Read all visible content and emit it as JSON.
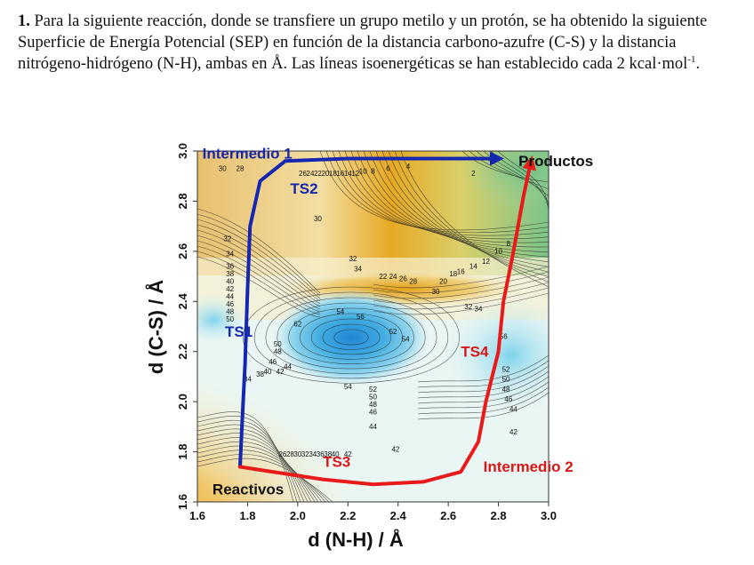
{
  "question": {
    "number": "1.",
    "text": "Para la siguiente reacción, donde se transfiere un grupo metilo y un protón, se ha obtenido la siguiente Superficie de Energía Potencial (SEP) en función de la distancia carbono-azufre (C-S) y la distancia nitrógeno-hidrógeno (N-H), ambas en Å. Las líneas isoenergéticas se han establecido cada 2 kcal·mol",
    "superscript": "-1",
    "end": "."
  },
  "chart_data": {
    "type": "heatmap",
    "xlabel": "d (N-H) / Å",
    "ylabel": "d (C-S) / Å",
    "xlim": [
      1.6,
      3.0
    ],
    "ylim": [
      1.6,
      3.0
    ],
    "xticks": [
      "1.6",
      "1.8",
      "2.0",
      "2.2",
      "2.4",
      "2.6",
      "2.8",
      "3.0"
    ],
    "yticks": [
      "1.6",
      "1.8",
      "2.0",
      "2.2",
      "2.4",
      "2.6",
      "2.8",
      "3.0"
    ],
    "contour_interval_kcal_mol": 2,
    "colors": {
      "high": "#e3a41a",
      "mid": "#f7f2c8",
      "low": "#35a4d6",
      "products": "#7cc48a"
    },
    "annotations": [
      {
        "text": "Intermedio 1",
        "x": 1.62,
        "y": 2.97,
        "color": "#1526b0"
      },
      {
        "text": "TS2",
        "x": 1.97,
        "y": 2.83,
        "color": "#1526b0"
      },
      {
        "text": "TS1",
        "x": 1.71,
        "y": 2.26,
        "color": "#1526b0"
      },
      {
        "text": "Productos",
        "x": 2.88,
        "y": 2.94,
        "color": "#111111"
      },
      {
        "text": "TS4",
        "x": 2.65,
        "y": 2.18,
        "color": "#d81818"
      },
      {
        "text": "TS3",
        "x": 2.1,
        "y": 1.74,
        "color": "#d81818"
      },
      {
        "text": "Intermedio 2",
        "x": 2.74,
        "y": 1.72,
        "color": "#d81818"
      },
      {
        "text": "Reactivos",
        "x": 1.66,
        "y": 1.63,
        "color": "#111111"
      }
    ],
    "paths": [
      {
        "color": "#1526b0",
        "points": [
          [
            1.77,
            1.74
          ],
          [
            1.78,
            1.95
          ],
          [
            1.79,
            2.15
          ],
          [
            1.8,
            2.45
          ],
          [
            1.81,
            2.7
          ],
          [
            1.85,
            2.88
          ],
          [
            1.95,
            2.96
          ],
          [
            2.2,
            2.97
          ],
          [
            2.5,
            2.97
          ],
          [
            2.8,
            2.97
          ]
        ]
      },
      {
        "color": "#e81a1a",
        "points": [
          [
            1.77,
            1.74
          ],
          [
            1.9,
            1.72
          ],
          [
            2.1,
            1.69
          ],
          [
            2.3,
            1.67
          ],
          [
            2.5,
            1.68
          ],
          [
            2.65,
            1.72
          ],
          [
            2.72,
            1.84
          ],
          [
            2.75,
            2.0
          ],
          [
            2.8,
            2.2
          ],
          [
            2.82,
            2.4
          ],
          [
            2.86,
            2.6
          ],
          [
            2.9,
            2.82
          ],
          [
            2.93,
            2.96
          ]
        ]
      }
    ],
    "contour_labels": [
      {
        "t": "30",
        "x": 1.7,
        "y": 2.92
      },
      {
        "t": "28",
        "x": 1.77,
        "y": 2.92
      },
      {
        "t": "26",
        "x": 2.02,
        "y": 2.9
      },
      {
        "t": "24",
        "x": 2.05,
        "y": 2.9
      },
      {
        "t": "22",
        "x": 2.08,
        "y": 2.9
      },
      {
        "t": "20",
        "x": 2.11,
        "y": 2.9
      },
      {
        "t": "18",
        "x": 2.14,
        "y": 2.9
      },
      {
        "t": "16",
        "x": 2.17,
        "y": 2.9
      },
      {
        "t": "14",
        "x": 2.2,
        "y": 2.9
      },
      {
        "t": "12",
        "x": 2.23,
        "y": 2.9
      },
      {
        "t": "10",
        "x": 2.26,
        "y": 2.91
      },
      {
        "t": "8",
        "x": 2.3,
        "y": 2.91
      },
      {
        "t": "6",
        "x": 2.36,
        "y": 2.92
      },
      {
        "t": "4",
        "x": 2.44,
        "y": 2.93
      },
      {
        "t": "2",
        "x": 2.7,
        "y": 2.9
      },
      {
        "t": "30",
        "x": 2.08,
        "y": 2.72
      },
      {
        "t": "32",
        "x": 1.72,
        "y": 2.64
      },
      {
        "t": "34",
        "x": 1.73,
        "y": 2.58
      },
      {
        "t": "36",
        "x": 1.73,
        "y": 2.53
      },
      {
        "t": "38",
        "x": 1.73,
        "y": 2.5
      },
      {
        "t": "40",
        "x": 1.73,
        "y": 2.47
      },
      {
        "t": "42",
        "x": 1.73,
        "y": 2.44
      },
      {
        "t": "44",
        "x": 1.73,
        "y": 2.41
      },
      {
        "t": "46",
        "x": 1.73,
        "y": 2.38
      },
      {
        "t": "48",
        "x": 1.73,
        "y": 2.35
      },
      {
        "t": "50",
        "x": 1.73,
        "y": 2.32
      },
      {
        "t": "32",
        "x": 2.22,
        "y": 2.56
      },
      {
        "t": "34",
        "x": 2.24,
        "y": 2.52
      },
      {
        "t": "30",
        "x": 2.55,
        "y": 2.43
      },
      {
        "t": "32",
        "x": 2.68,
        "y": 2.37
      },
      {
        "t": "34",
        "x": 2.72,
        "y": 2.36
      },
      {
        "t": "8",
        "x": 2.84,
        "y": 2.62
      },
      {
        "t": "10",
        "x": 2.8,
        "y": 2.59
      },
      {
        "t": "12",
        "x": 2.75,
        "y": 2.55
      },
      {
        "t": "14",
        "x": 2.7,
        "y": 2.53
      },
      {
        "t": "16",
        "x": 2.65,
        "y": 2.51
      },
      {
        "t": "18",
        "x": 2.62,
        "y": 2.5
      },
      {
        "t": "20",
        "x": 2.58,
        "y": 2.47
      },
      {
        "t": "28",
        "x": 2.46,
        "y": 2.47
      },
      {
        "t": "26",
        "x": 2.42,
        "y": 2.48
      },
      {
        "t": "24",
        "x": 2.38,
        "y": 2.49
      },
      {
        "t": "22",
        "x": 2.34,
        "y": 2.49
      },
      {
        "t": "54",
        "x": 2.17,
        "y": 2.35
      },
      {
        "t": "56",
        "x": 2.25,
        "y": 2.33
      },
      {
        "t": "52",
        "x": 2.38,
        "y": 2.27
      },
      {
        "t": "62",
        "x": 2.0,
        "y": 2.3
      },
      {
        "t": "54",
        "x": 2.43,
        "y": 2.24
      },
      {
        "t": "50",
        "x": 1.92,
        "y": 2.22
      },
      {
        "t": "48",
        "x": 1.92,
        "y": 2.19
      },
      {
        "t": "46",
        "x": 1.9,
        "y": 2.15
      },
      {
        "t": "44",
        "x": 1.96,
        "y": 2.13
      },
      {
        "t": "42",
        "x": 1.93,
        "y": 2.11
      },
      {
        "t": "40",
        "x": 1.88,
        "y": 2.11
      },
      {
        "t": "38",
        "x": 1.85,
        "y": 2.1
      },
      {
        "t": "34",
        "x": 1.8,
        "y": 2.08
      },
      {
        "t": "54",
        "x": 2.2,
        "y": 2.05
      },
      {
        "t": "52",
        "x": 2.3,
        "y": 2.04
      },
      {
        "t": "50",
        "x": 2.3,
        "y": 2.01
      },
      {
        "t": "48",
        "x": 2.3,
        "y": 1.98
      },
      {
        "t": "46",
        "x": 2.3,
        "y": 1.95
      },
      {
        "t": "44",
        "x": 2.3,
        "y": 1.89
      },
      {
        "t": "42",
        "x": 2.39,
        "y": 1.8
      },
      {
        "t": "52",
        "x": 2.83,
        "y": 2.12
      },
      {
        "t": "50",
        "x": 2.83,
        "y": 2.08
      },
      {
        "t": "48",
        "x": 2.83,
        "y": 2.04
      },
      {
        "t": "46",
        "x": 2.84,
        "y": 2.0
      },
      {
        "t": "44",
        "x": 2.86,
        "y": 1.96
      },
      {
        "t": "42",
        "x": 2.86,
        "y": 1.87
      },
      {
        "t": "56",
        "x": 2.82,
        "y": 2.25
      },
      {
        "t": "26",
        "x": 1.94,
        "y": 1.78
      },
      {
        "t": "28",
        "x": 1.97,
        "y": 1.78
      },
      {
        "t": "30",
        "x": 2.0,
        "y": 1.78
      },
      {
        "t": "32",
        "x": 2.03,
        "y": 1.78
      },
      {
        "t": "34",
        "x": 2.06,
        "y": 1.78
      },
      {
        "t": "36",
        "x": 2.09,
        "y": 1.78
      },
      {
        "t": "38",
        "x": 2.12,
        "y": 1.78
      },
      {
        "t": "40",
        "x": 2.15,
        "y": 1.78
      },
      {
        "t": "42",
        "x": 2.2,
        "y": 1.78
      }
    ]
  }
}
